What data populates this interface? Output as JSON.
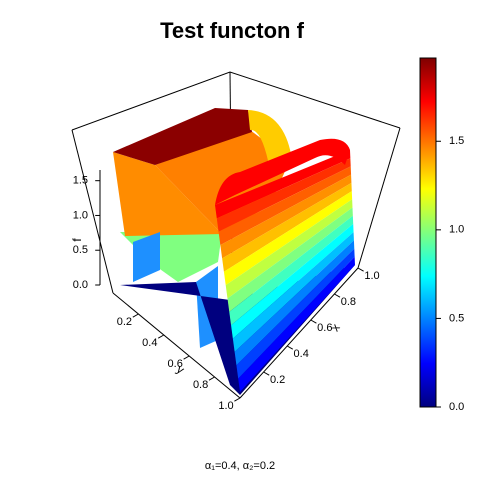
{
  "chart_data": {
    "type": "surface3d",
    "title": "Test functon f",
    "subtitle": "α₁=0.4, α₂=0.2",
    "x_label": "x",
    "y_label": "y",
    "z_label": "f",
    "xlim": [
      0,
      1
    ],
    "xticks": [
      0.2,
      0.4,
      0.6,
      0.8,
      {
        "value": 1,
        "label": "1.0"
      }
    ],
    "ylim": [
      0,
      1
    ],
    "yticks": [
      0.2,
      0.4,
      0.6,
      0.8,
      {
        "value": 1,
        "label": "1.0"
      }
    ],
    "zlim": [
      0,
      1.97
    ],
    "zticks": [
      {
        "value": 0,
        "label": "0.0"
      },
      0.5,
      {
        "value": 1,
        "label": "1.0"
      },
      1.5
    ],
    "colorbar_ticks": [
      {
        "value": 0,
        "label": "0.0"
      },
      0.5,
      {
        "value": 1,
        "label": "1.0"
      },
      1.5
    ]
  }
}
